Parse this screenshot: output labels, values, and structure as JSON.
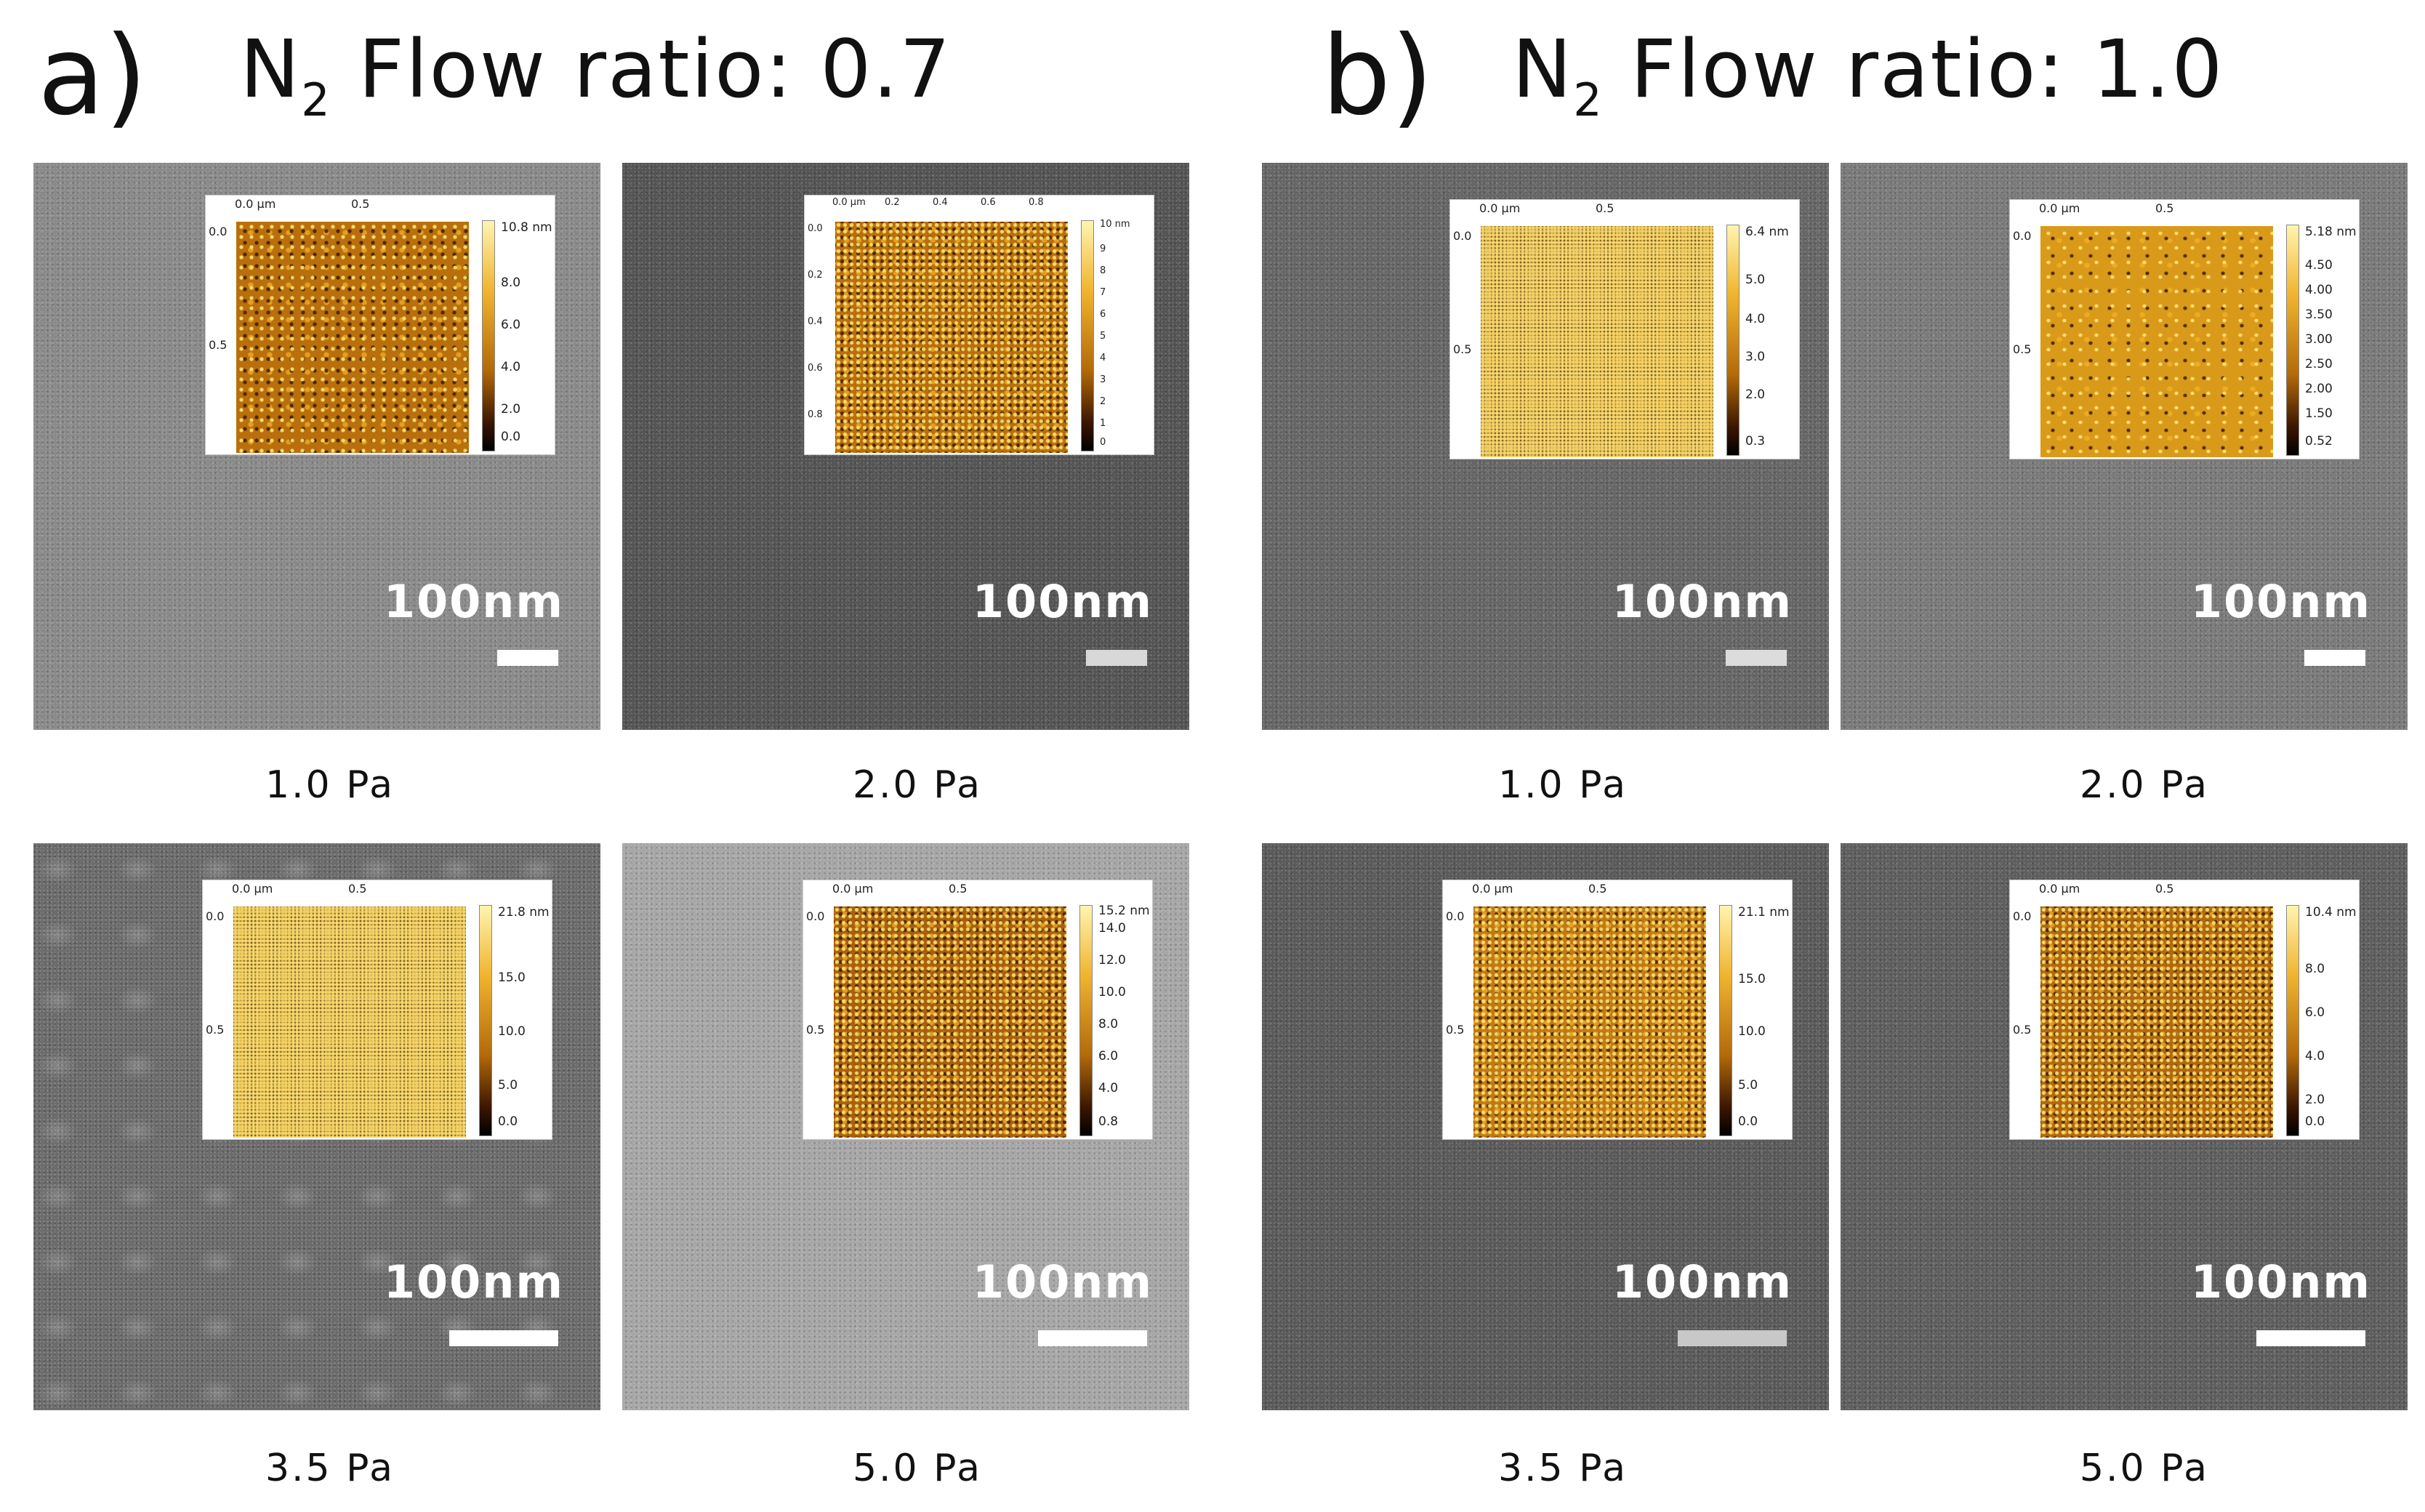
{
  "panels": [
    {
      "letter": "a)",
      "title_prefix": "N",
      "title_sub": "2",
      "title_suffix": " Flow ratio: 0.7"
    },
    {
      "letter": "b)",
      "title_prefix": "N",
      "title_sub": "2",
      "title_suffix": " Flow ratio: 1.0"
    }
  ],
  "scale_label": "100nm",
  "cells": [
    {
      "pressure": "1.0 Pa",
      "afm": {
        "top_ticks": [
          "0.0 µm",
          "0.5"
        ],
        "left_ticks": [
          "0.0",
          "0.5"
        ],
        "cbar_ticks": [
          "10.8 nm",
          "8.0",
          "6.0",
          "4.0",
          "2.0",
          "0.0"
        ]
      }
    },
    {
      "pressure": "2.0 Pa",
      "afm": {
        "top_ticks": [
          "0.0 µm",
          "0.2",
          "0.4",
          "0.6",
          "0.8"
        ],
        "left_ticks": [
          "0.0",
          "0.2",
          "0.4",
          "0.6",
          "0.8"
        ],
        "cbar_ticks": [
          "10 nm",
          "9",
          "8",
          "7",
          "6",
          "5",
          "4",
          "3",
          "2",
          "1",
          "0"
        ]
      }
    },
    {
      "pressure": "1.0 Pa",
      "afm": {
        "top_ticks": [
          "0.0 µm",
          "0.5"
        ],
        "left_ticks": [
          "0.0",
          "0.5"
        ],
        "cbar_ticks": [
          "6.4 nm",
          "5.0",
          "4.0",
          "3.0",
          "2.0",
          "0.3"
        ]
      }
    },
    {
      "pressure": "2.0 Pa",
      "afm": {
        "top_ticks": [
          "0.0 µm",
          "0.5"
        ],
        "left_ticks": [
          "0.0",
          "0.5"
        ],
        "cbar_ticks": [
          "5.18 nm",
          "4.50",
          "4.00",
          "3.50",
          "3.00",
          "2.50",
          "2.00",
          "1.50",
          "0.52"
        ]
      }
    },
    {
      "pressure": "3.5 Pa",
      "afm": {
        "top_ticks": [
          "0.0 µm",
          "0.5"
        ],
        "left_ticks": [
          "0.0",
          "0.5"
        ],
        "cbar_ticks": [
          "21.8 nm",
          "15.0",
          "10.0",
          "5.0",
          "0.0"
        ]
      }
    },
    {
      "pressure": "5.0 Pa",
      "afm": {
        "top_ticks": [
          "0.0 µm",
          "0.5"
        ],
        "left_ticks": [
          "0.0",
          "0.5"
        ],
        "cbar_ticks": [
          "15.2 nm",
          "14.0",
          "12.0",
          "10.0",
          "8.0",
          "6.0",
          "4.0",
          "0.8"
        ]
      }
    },
    {
      "pressure": "3.5 Pa",
      "afm": {
        "top_ticks": [
          "0.0 µm",
          "0.5"
        ],
        "left_ticks": [
          "0.0",
          "0.5"
        ],
        "cbar_ticks": [
          "21.1 nm",
          "15.0",
          "10.0",
          "5.0",
          "0.0"
        ]
      }
    },
    {
      "pressure": "5.0 Pa",
      "afm": {
        "top_ticks": [
          "0.0 µm",
          "0.5"
        ],
        "left_ticks": [
          "0.0",
          "0.5"
        ],
        "cbar_ticks": [
          "10.4 nm",
          "8.0",
          "6.0",
          "4.0",
          "2.0",
          "0.0"
        ]
      }
    }
  ]
}
